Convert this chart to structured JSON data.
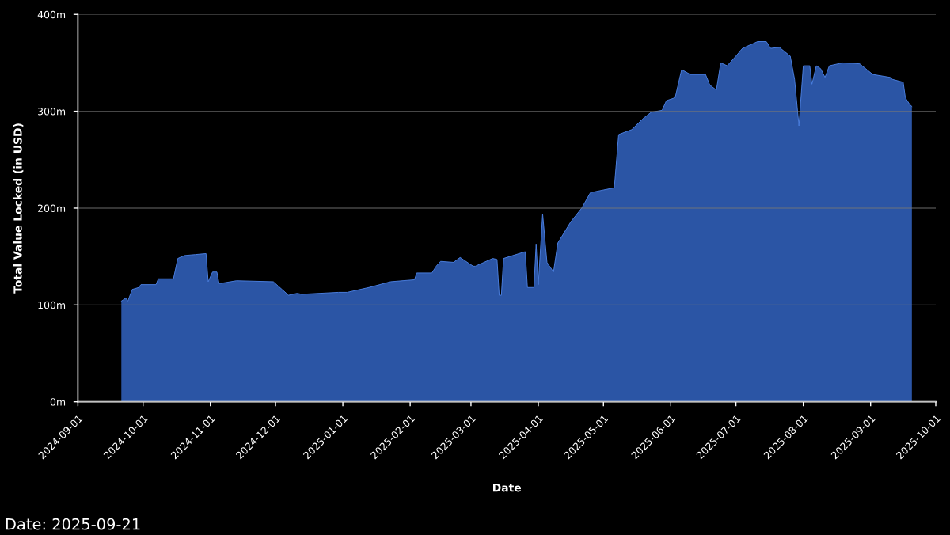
{
  "chart_data": {
    "type": "area",
    "xlabel": "Date",
    "ylabel": "Total Value Locked (in USD)",
    "annotations": [
      "Date: 2025-09-21"
    ],
    "xlim": [
      "2024-09-01",
      "2025-10-01"
    ],
    "xticks": [
      "2024-09-01",
      "2024-10-01",
      "2024-11-01",
      "2024-12-01",
      "2025-01-01",
      "2025-02-01",
      "2025-03-01",
      "2025-04-01",
      "2025-05-01",
      "2025-06-01",
      "2025-07-01",
      "2025-08-01",
      "2025-09-01",
      "2025-10-01"
    ],
    "ylim": [
      0,
      400
    ],
    "yticks": [
      {
        "value": 0,
        "label": "0m"
      },
      {
        "value": 100,
        "label": "100m"
      },
      {
        "value": 200,
        "label": "200m"
      },
      {
        "value": 300,
        "label": "300m"
      },
      {
        "value": 400,
        "label": "400m"
      }
    ],
    "grid": "y",
    "series": [
      {
        "color": "#2b55a5",
        "x": [
          "2024-09-21",
          "2024-09-23",
          "2024-09-24",
          "2024-09-26",
          "2024-09-29",
          "2024-09-30",
          "2024-10-07",
          "2024-10-08",
          "2024-10-15",
          "2024-10-17",
          "2024-10-20",
          "2024-10-25",
          "2024-10-30",
          "2024-10-31",
          "2024-11-02",
          "2024-11-04",
          "2024-11-05",
          "2024-11-13",
          "2024-11-30",
          "2024-12-04",
          "2024-12-07",
          "2024-12-11",
          "2024-12-13",
          "2024-12-30",
          "2025-01-03",
          "2025-01-13",
          "2025-01-23",
          "2025-02-03",
          "2025-02-04",
          "2025-02-11",
          "2025-02-13",
          "2025-02-15",
          "2025-02-21",
          "2025-02-24",
          "2025-03-02",
          "2025-03-03",
          "2025-03-11",
          "2025-03-13",
          "2025-03-14",
          "2025-03-15",
          "2025-03-16",
          "2025-03-26",
          "2025-03-27",
          "2025-03-30",
          "2025-03-31",
          "2025-04-01",
          "2025-04-03",
          "2025-04-05",
          "2025-04-08",
          "2025-04-10",
          "2025-04-16",
          "2025-04-21",
          "2025-04-25",
          "2025-05-06",
          "2025-05-08",
          "2025-05-14",
          "2025-05-19",
          "2025-05-23",
          "2025-05-28",
          "2025-05-30",
          "2025-06-03",
          "2025-06-06",
          "2025-06-10",
          "2025-06-17",
          "2025-06-19",
          "2025-06-22",
          "2025-06-24",
          "2025-06-27",
          "2025-07-01",
          "2025-07-04",
          "2025-07-11",
          "2025-07-15",
          "2025-07-17",
          "2025-07-21",
          "2025-07-26",
          "2025-07-28",
          "2025-07-30",
          "2025-08-01",
          "2025-08-04",
          "2025-08-05",
          "2025-08-07",
          "2025-08-09",
          "2025-08-11",
          "2025-08-13",
          "2025-08-19",
          "2025-08-27",
          "2025-09-02",
          "2025-09-10",
          "2025-09-11",
          "2025-09-16",
          "2025-09-17",
          "2025-09-19",
          "2025-09-20"
        ],
        "values": [
          104,
          107,
          104,
          116,
          118,
          121,
          121,
          127,
          127,
          148,
          151,
          152,
          153,
          124,
          134,
          134,
          122,
          125,
          124,
          116,
          110,
          112,
          111,
          113,
          113,
          118,
          124,
          126,
          133,
          133,
          140,
          145,
          144,
          149,
          140,
          140,
          148,
          147,
          110,
          110,
          148,
          155,
          118,
          118,
          163,
          121,
          194,
          144,
          134,
          164,
          186,
          200,
          216,
          221,
          276,
          281,
          292,
          299,
          301,
          311,
          314,
          343,
          338,
          338,
          327,
          322,
          350,
          347,
          357,
          365,
          372,
          372,
          365,
          366,
          357,
          333,
          285,
          347,
          347,
          328,
          347,
          344,
          335,
          347,
          350,
          349,
          338,
          335,
          333,
          330,
          314,
          307,
          305
        ]
      }
    ]
  }
}
